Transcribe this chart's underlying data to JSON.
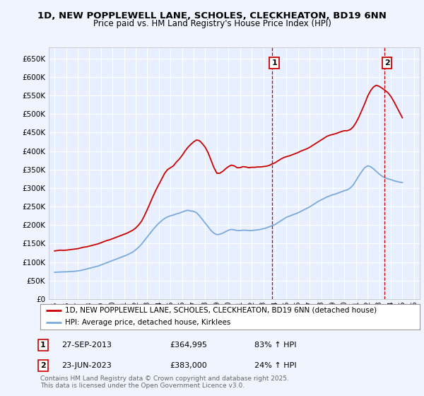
{
  "title": "1D, NEW POPPLEWELL LANE, SCHOLES, CLECKHEATON, BD19 6NN",
  "subtitle": "Price paid vs. HM Land Registry's House Price Index (HPI)",
  "background_color": "#f0f4ff",
  "plot_bg_color": "#e8f0ff",
  "grid_color": "#ffffff",
  "ylim": [
    0,
    680000
  ],
  "yticks": [
    0,
    50000,
    100000,
    150000,
    200000,
    250000,
    300000,
    350000,
    400000,
    450000,
    500000,
    550000,
    600000,
    650000
  ],
  "ytick_labels": [
    "£0",
    "£50K",
    "£100K",
    "£150K",
    "£200K",
    "£250K",
    "£300K",
    "£350K",
    "£400K",
    "£450K",
    "£500K",
    "£550K",
    "£600K",
    "£650K"
  ],
  "xlim_start": 1994.5,
  "xlim_end": 2026.5,
  "xticks": [
    1995,
    1996,
    1997,
    1998,
    1999,
    2000,
    2001,
    2002,
    2003,
    2004,
    2005,
    2006,
    2007,
    2008,
    2009,
    2010,
    2011,
    2012,
    2013,
    2014,
    2015,
    2016,
    2017,
    2018,
    2019,
    2020,
    2021,
    2022,
    2023,
    2024,
    2025,
    2026
  ],
  "red_line_color": "#cc0000",
  "blue_line_color": "#7aaadd",
  "marker1_x": 2013.75,
  "marker1_y": 364995,
  "marker1_label": "1",
  "marker1_date": "27-SEP-2013",
  "marker1_price": "£364,995",
  "marker1_hpi": "83% ↑ HPI",
  "marker2_x": 2023.47,
  "marker2_y": 383000,
  "marker2_label": "2",
  "marker2_date": "23-JUN-2023",
  "marker2_price": "£383,000",
  "marker2_hpi": "24% ↑ HPI",
  "legend_line1": "1D, NEW POPPLEWELL LANE, SCHOLES, CLECKHEATON, BD19 6NN (detached house)",
  "legend_line2": "HPI: Average price, detached house, Kirklees",
  "footer_text": "Contains HM Land Registry data © Crown copyright and database right 2025.\nThis data is licensed under the Open Government Licence v3.0.",
  "red_data_x": [
    1995.0,
    1995.25,
    1995.5,
    1995.75,
    1996.0,
    1996.25,
    1996.5,
    1996.75,
    1997.0,
    1997.25,
    1997.5,
    1997.75,
    1998.0,
    1998.25,
    1998.5,
    1998.75,
    1999.0,
    1999.25,
    1999.5,
    1999.75,
    2000.0,
    2000.25,
    2000.5,
    2000.75,
    2001.0,
    2001.25,
    2001.5,
    2001.75,
    2002.0,
    2002.25,
    2002.5,
    2002.75,
    2003.0,
    2003.25,
    2003.5,
    2003.75,
    2004.0,
    2004.25,
    2004.5,
    2004.75,
    2005.0,
    2005.25,
    2005.5,
    2005.75,
    2006.0,
    2006.25,
    2006.5,
    2006.75,
    2007.0,
    2007.25,
    2007.5,
    2007.75,
    2008.0,
    2008.25,
    2008.5,
    2008.75,
    2009.0,
    2009.25,
    2009.5,
    2009.75,
    2010.0,
    2010.25,
    2010.5,
    2010.75,
    2011.0,
    2011.25,
    2011.5,
    2011.75,
    2012.0,
    2012.25,
    2012.5,
    2012.75,
    2013.0,
    2013.25,
    2013.5,
    2013.75,
    2014.0,
    2014.25,
    2014.5,
    2014.75,
    2015.0,
    2015.25,
    2015.5,
    2015.75,
    2016.0,
    2016.25,
    2016.5,
    2016.75,
    2017.0,
    2017.25,
    2017.5,
    2017.75,
    2018.0,
    2018.25,
    2018.5,
    2018.75,
    2019.0,
    2019.25,
    2019.5,
    2019.75,
    2020.0,
    2020.25,
    2020.5,
    2020.75,
    2021.0,
    2021.25,
    2021.5,
    2021.75,
    2022.0,
    2022.25,
    2022.5,
    2022.75,
    2023.0,
    2023.25,
    2023.47,
    2023.75,
    2024.0,
    2024.25,
    2024.5,
    2024.75,
    2025.0
  ],
  "red_data_y": [
    130000,
    131000,
    132000,
    131500,
    132000,
    133000,
    134000,
    135000,
    136000,
    138000,
    140000,
    141000,
    143000,
    145000,
    147000,
    149000,
    152000,
    155000,
    158000,
    160000,
    163000,
    166000,
    169000,
    172000,
    175000,
    178000,
    182000,
    186000,
    192000,
    200000,
    210000,
    225000,
    242000,
    260000,
    278000,
    295000,
    310000,
    325000,
    340000,
    350000,
    355000,
    360000,
    370000,
    378000,
    388000,
    400000,
    410000,
    418000,
    425000,
    430000,
    428000,
    420000,
    410000,
    395000,
    375000,
    355000,
    340000,
    340000,
    345000,
    352000,
    358000,
    362000,
    360000,
    355000,
    355000,
    358000,
    357000,
    355000,
    356000,
    356000,
    357000,
    357000,
    358000,
    359000,
    361000,
    364995,
    368000,
    373000,
    378000,
    382000,
    385000,
    387000,
    390000,
    393000,
    396000,
    400000,
    403000,
    406000,
    410000,
    415000,
    420000,
    425000,
    430000,
    435000,
    440000,
    443000,
    445000,
    447000,
    450000,
    453000,
    455000,
    455000,
    458000,
    465000,
    477000,
    492000,
    510000,
    528000,
    548000,
    563000,
    573000,
    578000,
    575000,
    570000,
    565000,
    558000,
    548000,
    535000,
    520000,
    505000,
    490000
  ],
  "blue_data_x": [
    1995.0,
    1995.25,
    1995.5,
    1995.75,
    1996.0,
    1996.25,
    1996.5,
    1996.75,
    1997.0,
    1997.25,
    1997.5,
    1997.75,
    1998.0,
    1998.25,
    1998.5,
    1998.75,
    1999.0,
    1999.25,
    1999.5,
    1999.75,
    2000.0,
    2000.25,
    2000.5,
    2000.75,
    2001.0,
    2001.25,
    2001.5,
    2001.75,
    2002.0,
    2002.25,
    2002.5,
    2002.75,
    2003.0,
    2003.25,
    2003.5,
    2003.75,
    2004.0,
    2004.25,
    2004.5,
    2004.75,
    2005.0,
    2005.25,
    2005.5,
    2005.75,
    2006.0,
    2006.25,
    2006.5,
    2006.75,
    2007.0,
    2007.25,
    2007.5,
    2007.75,
    2008.0,
    2008.25,
    2008.5,
    2008.75,
    2009.0,
    2009.25,
    2009.5,
    2009.75,
    2010.0,
    2010.25,
    2010.5,
    2010.75,
    2011.0,
    2011.25,
    2011.5,
    2011.75,
    2012.0,
    2012.25,
    2012.5,
    2012.75,
    2013.0,
    2013.25,
    2013.5,
    2013.75,
    2014.0,
    2014.25,
    2014.5,
    2014.75,
    2015.0,
    2015.25,
    2015.5,
    2015.75,
    2016.0,
    2016.25,
    2016.5,
    2016.75,
    2017.0,
    2017.25,
    2017.5,
    2017.75,
    2018.0,
    2018.25,
    2018.5,
    2018.75,
    2019.0,
    2019.25,
    2019.5,
    2019.75,
    2020.0,
    2020.25,
    2020.5,
    2020.75,
    2021.0,
    2021.25,
    2021.5,
    2021.75,
    2022.0,
    2022.25,
    2022.5,
    2022.75,
    2023.0,
    2023.25,
    2023.5,
    2023.75,
    2024.0,
    2024.25,
    2024.5,
    2024.75,
    2025.0
  ],
  "blue_data_y": [
    72000,
    72500,
    73000,
    73200,
    73500,
    74000,
    74500,
    75000,
    76000,
    77000,
    79000,
    81000,
    83000,
    85000,
    87000,
    89000,
    92000,
    95000,
    98000,
    101000,
    104000,
    107000,
    110000,
    113000,
    116000,
    119000,
    123000,
    127000,
    133000,
    140000,
    148000,
    158000,
    168000,
    178000,
    188000,
    197000,
    205000,
    212000,
    218000,
    222000,
    225000,
    227000,
    230000,
    232000,
    235000,
    238000,
    240000,
    238000,
    237000,
    233000,
    225000,
    215000,
    205000,
    195000,
    185000,
    178000,
    174000,
    175000,
    178000,
    182000,
    186000,
    188000,
    187000,
    185000,
    185000,
    186000,
    186000,
    185000,
    185000,
    186000,
    187000,
    188000,
    190000,
    192000,
    195000,
    198000,
    201000,
    206000,
    211000,
    216000,
    221000,
    224000,
    227000,
    230000,
    233000,
    237000,
    241000,
    245000,
    249000,
    254000,
    259000,
    264000,
    268000,
    272000,
    276000,
    279000,
    282000,
    284000,
    287000,
    290000,
    293000,
    295000,
    300000,
    308000,
    320000,
    333000,
    345000,
    355000,
    360000,
    358000,
    352000,
    345000,
    338000,
    332000,
    328000,
    325000,
    323000,
    320000,
    318000,
    316000,
    315000
  ]
}
